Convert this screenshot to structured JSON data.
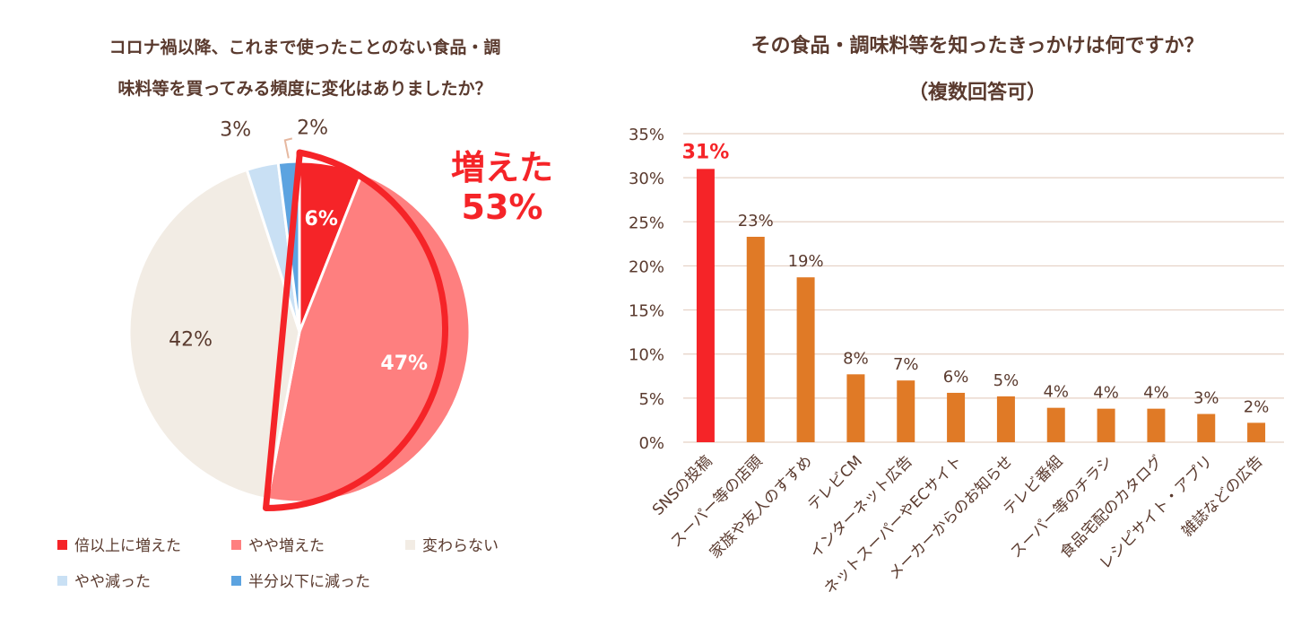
{
  "colors": {
    "text": "#5a3a2e",
    "accent_red": "#f52428",
    "bar_orange": "#e07a26",
    "grid": "#e5d0c4"
  },
  "chart_data": [
    {
      "type": "pie",
      "title_lines": [
        "コロナ禍以降、これまで使ったことのない食品・調",
        "味料等を買ってみる頻度に変化はありましたか？"
      ],
      "slices": [
        {
          "name": "倍以上に増えた",
          "value": 6,
          "label": "6%",
          "color": "#f52428"
        },
        {
          "name": "やや増えた",
          "value": 47,
          "label": "47%",
          "color": "#fe7f7f"
        },
        {
          "name": "変わらない",
          "value": 42,
          "label": "42%",
          "color": "#f2ece4"
        },
        {
          "name": "やや減った",
          "value": 3,
          "label": "3%",
          "color": "#c9e0f4"
        },
        {
          "name": "半分以下に減った",
          "value": 2,
          "label": "2%",
          "color": "#5ca3e0"
        }
      ],
      "callout": {
        "line1": "増えた",
        "line2": "53%"
      },
      "legend_placement": "bottom"
    },
    {
      "type": "bar",
      "title_lines": [
        "その食品・調味料等を知ったきっかけは何ですか？",
        "（複数回答可）"
      ],
      "categories": [
        "SNSの投稿",
        "スーパー等の店頭",
        "家族や友人のすすめ",
        "テレビCM",
        "インターネット広告",
        "ネットスーパーやECサイト",
        "メーカーからのお知らせ",
        "テレビ番組",
        "スーパー等のチラシ",
        "食品宅配のカタログ",
        "レシピサイト・アプリ",
        "雑誌などの広告"
      ],
      "values": [
        31,
        23.3,
        18.7,
        7.7,
        7,
        5.6,
        5.2,
        3.9,
        3.8,
        3.8,
        3.2,
        2.2
      ],
      "value_labels": [
        "31%",
        "23%",
        "19%",
        "8%",
        "7%",
        "6%",
        "5%",
        "4%",
        "4%",
        "4%",
        "3%",
        "2%"
      ],
      "ylim": [
        0,
        35
      ],
      "yticks": [
        "0%",
        "5%",
        "10%",
        "15%",
        "20%",
        "25%",
        "30%",
        "35%"
      ],
      "grid": true,
      "highlight_index": 0
    }
  ]
}
